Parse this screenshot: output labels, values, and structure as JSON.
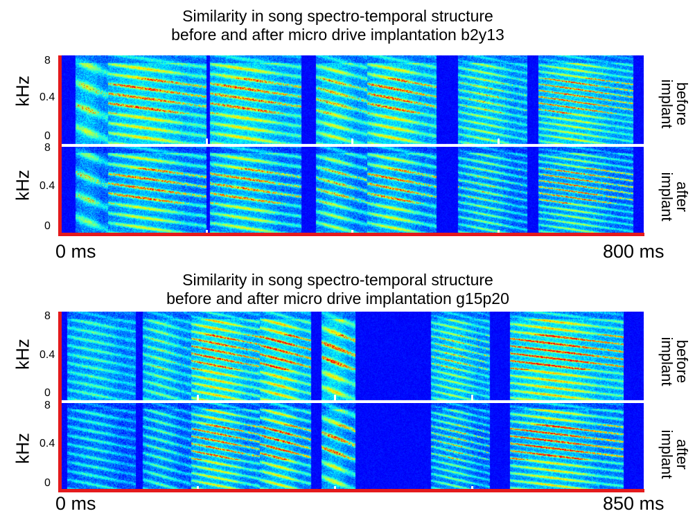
{
  "colors": {
    "axis": "#e41a1c",
    "separator": "#ffffff",
    "colormap": [
      "#00008f",
      "#0000ff",
      "#0080ff",
      "#00ffff",
      "#80ff80",
      "#ffff00",
      "#ff8000",
      "#ff0000"
    ]
  },
  "chart_data": [
    {
      "type": "heatmap",
      "title": "Similarity in song spectro-temporal structure",
      "subtitle": "before and after micro drive implantation b2y13",
      "ylabel": "kHz",
      "yticks": [
        "8",
        "0.4",
        "0"
      ],
      "rows": [
        {
          "label": "before implant",
          "label_line1": "before",
          "label_line2": "implant"
        },
        {
          "label": "after implant",
          "label_line1": "after",
          "label_line2": "implant"
        }
      ],
      "x_start_label": "0 ms",
      "x_end_label": "800 ms",
      "xlim": [
        0,
        800
      ],
      "segment_markers_ms": [
        200,
        400,
        600
      ],
      "syllables": [
        {
          "start": 20,
          "end": 65,
          "level": 0.45,
          "harmonics": 4,
          "hot": 0.15
        },
        {
          "start": 65,
          "end": 200,
          "level": 0.55,
          "harmonics": 9,
          "hot": 0.55
        },
        {
          "start": 205,
          "end": 330,
          "level": 0.55,
          "harmonics": 9,
          "hot": 0.5
        },
        {
          "start": 350,
          "end": 420,
          "level": 0.5,
          "harmonics": 8,
          "hot": 0.3
        },
        {
          "start": 420,
          "end": 515,
          "level": 0.55,
          "harmonics": 9,
          "hot": 0.55
        },
        {
          "start": 545,
          "end": 640,
          "level": 0.45,
          "harmonics": 12,
          "hot": 0.1
        },
        {
          "start": 655,
          "end": 785,
          "level": 0.5,
          "harmonics": 14,
          "hot": 0.7
        }
      ]
    },
    {
      "type": "heatmap",
      "title": "Similarity in song spectro-temporal structure",
      "subtitle": "before and after micro drive implantation g15p20",
      "ylabel": "kHz",
      "yticks": [
        "8",
        "0.4",
        "0"
      ],
      "rows": [
        {
          "label": "before implant",
          "label_line1": "before",
          "label_line2": "implant"
        },
        {
          "label": "after implant",
          "label_line1": "after",
          "label_line2": "implant"
        }
      ],
      "x_start_label": "0 ms",
      "x_end_label": "850 ms",
      "xlim": [
        0,
        850
      ],
      "segment_markers_ms": [
        200,
        400,
        600
      ],
      "syllables": [
        {
          "start": 10,
          "end": 110,
          "level": 0.35,
          "harmonics": 10,
          "hot": 0.0
        },
        {
          "start": 120,
          "end": 190,
          "level": 0.4,
          "harmonics": 10,
          "hot": 0.05
        },
        {
          "start": 190,
          "end": 290,
          "level": 0.6,
          "harmonics": 12,
          "hot": 0.6
        },
        {
          "start": 290,
          "end": 365,
          "level": 0.6,
          "harmonics": 10,
          "hot": 0.7
        },
        {
          "start": 380,
          "end": 430,
          "level": 0.55,
          "harmonics": 6,
          "hot": 0.6
        },
        {
          "start": 540,
          "end": 625,
          "level": 0.45,
          "harmonics": 13,
          "hot": 0.25
        },
        {
          "start": 655,
          "end": 820,
          "level": 0.6,
          "harmonics": 12,
          "hot": 0.8
        }
      ]
    }
  ]
}
